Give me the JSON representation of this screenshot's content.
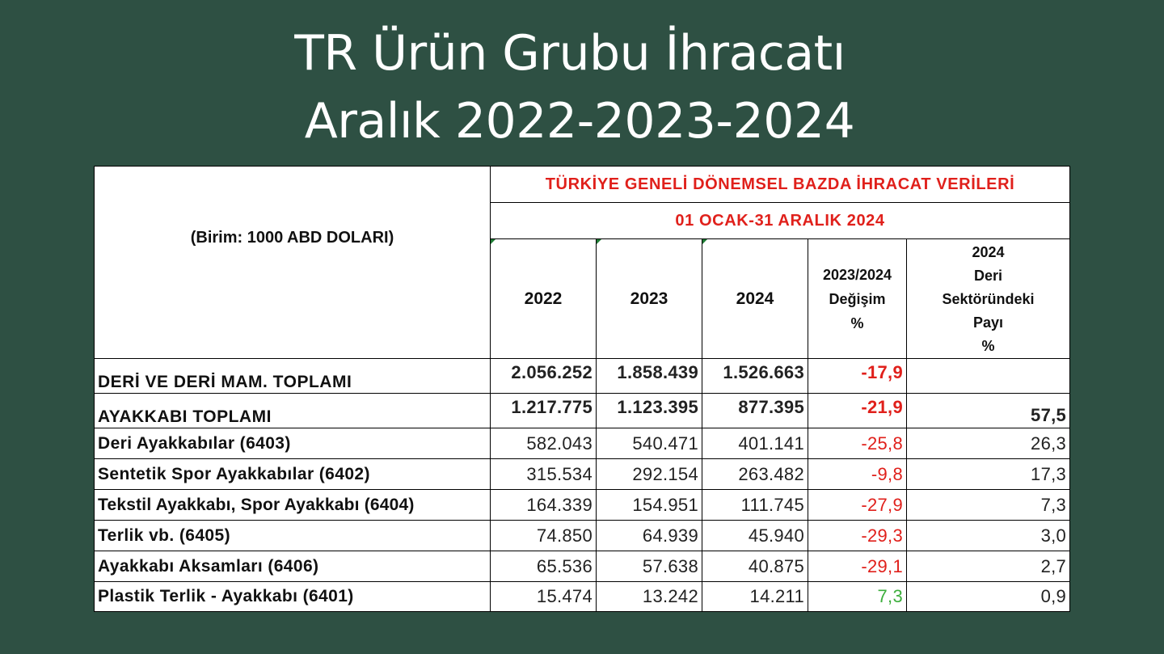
{
  "title_line1": "TR Ürün Grubu İhracatı",
  "title_line2": "Aralık 2022-2023-2024",
  "table": {
    "unit": "(Birim: 1000 ABD DOLARI)",
    "header_main": "TÜRKİYE GENELİ DÖNEMSEL BAZDA İHRACAT VERİLERİ",
    "header_period": "01 OCAK-31 ARALIK 2024",
    "col_2022": "2022",
    "col_2023": "2023",
    "col_2024": "2024",
    "col_change": [
      "2023/2024",
      "Değişim",
      "%"
    ],
    "col_share": [
      "2024",
      "Deri",
      "Sektöründeki",
      "Payı",
      "%"
    ],
    "rows": [
      {
        "label": "DERİ VE DERİ MAM. TOPLAMI",
        "v2022": "2.056.252",
        "v2023": "1.858.439",
        "v2024": "1.526.663",
        "change": "-17,9",
        "share": ""
      },
      {
        "label": "AYAKKABI TOPLAMI",
        "v2022": "1.217.775",
        "v2023": "1.123.395",
        "v2024": "877.395",
        "change": "-21,9",
        "share": "57,5"
      },
      {
        "label": "Deri Ayakkabılar (6403)",
        "v2022": "582.043",
        "v2023": "540.471",
        "v2024": "401.141",
        "change": "-25,8",
        "share": "26,3"
      },
      {
        "label": "Sentetik Spor Ayakkabılar (6402)",
        "v2022": "315.534",
        "v2023": "292.154",
        "v2024": "263.482",
        "change": "-9,8",
        "share": "17,3"
      },
      {
        "label": "Tekstil Ayakkabı, Spor Ayakkabı (6404)",
        "v2022": "164.339",
        "v2023": "154.951",
        "v2024": "111.745",
        "change": "-27,9",
        "share": "7,3"
      },
      {
        "label": "Terlik vb. (6405)",
        "v2022": "74.850",
        "v2023": "64.939",
        "v2024": "45.940",
        "change": "-29,3",
        "share": "3,0"
      },
      {
        "label": "Ayakkabı Aksamları (6406)",
        "v2022": "65.536",
        "v2023": "57.638",
        "v2024": "40.875",
        "change": "-29,1",
        "share": "2,7"
      },
      {
        "label": "Plastik Terlik - Ayakkabı (6401)",
        "v2022": "15.474",
        "v2023": "13.242",
        "v2024": "14.211",
        "change": "7,3",
        "share": "0,9"
      }
    ]
  },
  "colors": {
    "background": "#2e5043",
    "header_red": "#e0201b",
    "negative": "#e0201b",
    "positive": "#3cae3c"
  }
}
